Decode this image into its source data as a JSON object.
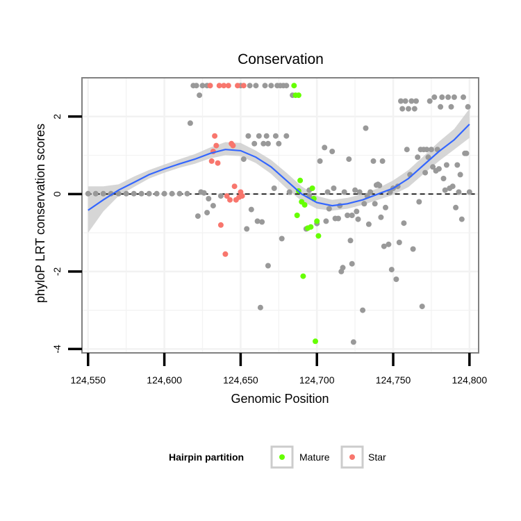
{
  "chart_data": {
    "type": "scatter",
    "title": "Conservation",
    "xlabel": "Genomic Position",
    "ylabel": "phyloP LRT conservation scores",
    "xlim": [
      124546,
      124806
    ],
    "ylim": [
      -4.1,
      3.0
    ],
    "x_ticks": [
      124550,
      124600,
      124650,
      124700,
      124750,
      124800
    ],
    "x_tick_labels": [
      "124,550",
      "124,600",
      "124,650",
      "124,700",
      "124,750",
      "124,800"
    ],
    "y_ticks": [
      -4,
      -2,
      0,
      2
    ],
    "y_tick_labels": [
      "-4",
      "-2",
      "0",
      "2"
    ],
    "reference_line_y": 0,
    "legend": {
      "title": "Hairpin partition",
      "position": "bottom",
      "entries": [
        {
          "label": "Mature",
          "color": "#66ff00"
        },
        {
          "label": "Star",
          "color": "#f8766d"
        }
      ]
    },
    "colors": {
      "other": "#999999",
      "mature": "#66ff00",
      "star": "#f8766d",
      "smooth": "#3366ff",
      "band": "#cccccc",
      "panel_bg": "#ffffff",
      "grid": "#f2f2f2"
    },
    "series": [
      {
        "name": "Other",
        "color": "#999999",
        "points": [
          [
            124550,
            0.01
          ],
          [
            124555,
            0.01
          ],
          [
            124560,
            0.01
          ],
          [
            124565,
            0.01
          ],
          [
            124570,
            0.01
          ],
          [
            124575,
            0.01
          ],
          [
            124580,
            0.01
          ],
          [
            124585,
            0.01
          ],
          [
            124590,
            0.01
          ],
          [
            124595,
            0.01
          ],
          [
            124600,
            0.01
          ],
          [
            124605,
            0.01
          ],
          [
            124610,
            0.01
          ],
          [
            124615,
            0.01
          ],
          [
            124617,
            1.83
          ],
          [
            124619,
            2.8
          ],
          [
            124621,
            2.8
          ],
          [
            124622,
            -0.57
          ],
          [
            124623,
            2.55
          ],
          [
            124624,
            0.05
          ],
          [
            124625,
            2.8
          ],
          [
            124626,
            0.03
          ],
          [
            124628,
            -0.48
          ],
          [
            124628,
            2.8
          ],
          [
            124629,
            -0.12
          ],
          [
            124630,
            2.8
          ],
          [
            124632,
            -0.3
          ],
          [
            124637,
            -0.05
          ],
          [
            124650,
            2.8
          ],
          [
            124652,
            0.9
          ],
          [
            124654,
            -0.9
          ],
          [
            124655,
            1.5
          ],
          [
            124656,
            2.8
          ],
          [
            124657,
            -0.4
          ],
          [
            124659,
            1.3
          ],
          [
            124660,
            2.8
          ],
          [
            124661,
            -0.7
          ],
          [
            124662,
            1.5
          ],
          [
            124663,
            -2.93
          ],
          [
            124664,
            -0.72
          ],
          [
            124665,
            1.3
          ],
          [
            124666,
            2.8
          ],
          [
            124667,
            1.5
          ],
          [
            124668,
            -1.85
          ],
          [
            124668,
            1.3
          ],
          [
            124670,
            2.8
          ],
          [
            124672,
            0.15
          ],
          [
            124673,
            1.5
          ],
          [
            124674,
            2.8
          ],
          [
            124675,
            1.3
          ],
          [
            124676,
            2.8
          ],
          [
            124677,
            -1.15
          ],
          [
            124678,
            2.8
          ],
          [
            124680,
            1.5
          ],
          [
            124680,
            2.8
          ],
          [
            124682,
            0.05
          ],
          [
            124684,
            2.55
          ],
          [
            124693,
            -0.9
          ],
          [
            124695,
            -0.05
          ],
          [
            124695,
            0.1
          ],
          [
            124700,
            -0.76
          ],
          [
            124702,
            0.85
          ],
          [
            124705,
            1.2
          ],
          [
            124706,
            -0.7
          ],
          [
            124707,
            0.05
          ],
          [
            124708,
            -0.38
          ],
          [
            124710,
            1.1
          ],
          [
            124711,
            0.15
          ],
          [
            124712,
            -0.63
          ],
          [
            124714,
            -0.63
          ],
          [
            124715,
            -0.3
          ],
          [
            124716,
            -2.0
          ],
          [
            124717,
            -1.9
          ],
          [
            124718,
            0.05
          ],
          [
            124720,
            -0.55
          ],
          [
            124721,
            0.9
          ],
          [
            124722,
            -1.2
          ],
          [
            124723,
            -1.8
          ],
          [
            124723,
            -0.55
          ],
          [
            124724,
            -3.82
          ],
          [
            124725,
            0.1
          ],
          [
            124726,
            -0.45
          ],
          [
            124727,
            -0.65
          ],
          [
            124728,
            0.05
          ],
          [
            124730,
            -3.0
          ],
          [
            124731,
            -0.25
          ],
          [
            124732,
            1.7
          ],
          [
            124733,
            -0.05
          ],
          [
            124734,
            -0.78
          ],
          [
            124735,
            0.05
          ],
          [
            124737,
            0.85
          ],
          [
            124738,
            -0.25
          ],
          [
            124739,
            0.23
          ],
          [
            124740,
            0.25
          ],
          [
            124741,
            0.22
          ],
          [
            124742,
            -0.6
          ],
          [
            124743,
            0.85
          ],
          [
            124744,
            -1.35
          ],
          [
            124745,
            -0.35
          ],
          [
            124747,
            -1.3
          ],
          [
            124748,
            0.05
          ],
          [
            124749,
            -1.95
          ],
          [
            124750,
            0.15
          ],
          [
            124752,
            -2.2
          ],
          [
            124753,
            0.2
          ],
          [
            124754,
            -1.25
          ],
          [
            124755,
            2.4
          ],
          [
            124756,
            2.2
          ],
          [
            124757,
            -0.75
          ],
          [
            124758,
            2.4
          ],
          [
            124759,
            1.15
          ],
          [
            124760,
            2.2
          ],
          [
            124761,
            0.5
          ],
          [
            124762,
            2.4
          ],
          [
            124763,
            -1.42
          ],
          [
            124764,
            2.2
          ],
          [
            124765,
            2.4
          ],
          [
            124766,
            0.95
          ],
          [
            124767,
            -0.2
          ],
          [
            124768,
            1.15
          ],
          [
            124769,
            -2.9
          ],
          [
            124770,
            1.15
          ],
          [
            124771,
            0.55
          ],
          [
            124772,
            1.15
          ],
          [
            124773,
            0.95
          ],
          [
            124774,
            2.4
          ],
          [
            124775,
            1.15
          ],
          [
            124776,
            0.7
          ],
          [
            124777,
            2.5
          ],
          [
            124778,
            0.6
          ],
          [
            124779,
            1.15
          ],
          [
            124780,
            0.65
          ],
          [
            124781,
            2.25
          ],
          [
            124782,
            2.5
          ],
          [
            124783,
            0.4
          ],
          [
            124784,
            0.1
          ],
          [
            124785,
            0.75
          ],
          [
            124786,
            2.5
          ],
          [
            124787,
            0.15
          ],
          [
            124788,
            2.25
          ],
          [
            124789,
            0.2
          ],
          [
            124790,
            2.5
          ],
          [
            124791,
            -0.35
          ],
          [
            124792,
            0.75
          ],
          [
            124793,
            0.05
          ],
          [
            124794,
            0.5
          ],
          [
            124795,
            -0.65
          ],
          [
            124796,
            2.5
          ],
          [
            124797,
            1.05
          ],
          [
            124798,
            1.05
          ],
          [
            124799,
            2.25
          ],
          [
            124800,
            0.05
          ]
        ]
      },
      {
        "name": "Mature",
        "color": "#66ff00",
        "points": [
          [
            124685,
            2.8
          ],
          [
            124686,
            2.55
          ],
          [
            124687,
            -0.55
          ],
          [
            124688,
            0.08
          ],
          [
            124688,
            2.55
          ],
          [
            124689,
            0.35
          ],
          [
            124690,
            -0.2
          ],
          [
            124691,
            -2.12
          ],
          [
            124692,
            -0.28
          ],
          [
            124694,
            -0.88
          ],
          [
            124696,
            -0.85
          ],
          [
            124697,
            0.15
          ],
          [
            124698,
            -0.12
          ],
          [
            124699,
            -3.8
          ],
          [
            124700,
            -0.7
          ],
          [
            124701,
            -1.08
          ]
        ]
      },
      {
        "name": "Star",
        "color": "#f8766d",
        "points": [
          [
            124630,
            2.8
          ],
          [
            124631,
            0.85
          ],
          [
            124632,
            1.1
          ],
          [
            124633,
            1.5
          ],
          [
            124634,
            1.25
          ],
          [
            124635,
            0.8
          ],
          [
            124636,
            2.8
          ],
          [
            124637,
            -0.8
          ],
          [
            124639,
            2.8
          ],
          [
            124640,
            -1.55
          ],
          [
            124641,
            -0.05
          ],
          [
            124642,
            2.8
          ],
          [
            124643,
            -0.15
          ],
          [
            124644,
            1.3
          ],
          [
            124645,
            1.25
          ],
          [
            124646,
            0.2
          ],
          [
            124647,
            -0.15
          ],
          [
            124648,
            2.8
          ],
          [
            124649,
            -0.08
          ],
          [
            124650,
            0.05
          ],
          [
            124651,
            -0.05
          ],
          [
            124652,
            2.8
          ]
        ]
      }
    ],
    "smooth": {
      "x": [
        124550,
        124560,
        124570,
        124580,
        124590,
        124600,
        124610,
        124620,
        124630,
        124640,
        124650,
        124660,
        124670,
        124680,
        124690,
        124700,
        124710,
        124720,
        124730,
        124740,
        124750,
        124760,
        124770,
        124780,
        124790,
        124800
      ],
      "y": [
        -0.42,
        -0.15,
        0.1,
        0.3,
        0.5,
        0.65,
        0.78,
        0.9,
        1.05,
        1.15,
        1.12,
        0.95,
        0.7,
        0.35,
        0.0,
        -0.22,
        -0.3,
        -0.25,
        -0.15,
        0.0,
        0.15,
        0.4,
        0.75,
        1.1,
        1.4,
        1.8
      ],
      "lower": [
        -1.0,
        -0.45,
        -0.05,
        0.18,
        0.4,
        0.55,
        0.68,
        0.78,
        0.92,
        1.0,
        0.98,
        0.8,
        0.52,
        0.15,
        -0.18,
        -0.38,
        -0.43,
        -0.38,
        -0.28,
        -0.15,
        -0.02,
        0.18,
        0.52,
        0.85,
        1.15,
        1.45
      ],
      "upper": [
        0.2,
        0.2,
        0.25,
        0.45,
        0.62,
        0.76,
        0.9,
        1.03,
        1.2,
        1.34,
        1.32,
        1.12,
        0.88,
        0.55,
        0.2,
        -0.05,
        -0.15,
        -0.1,
        0.0,
        0.15,
        0.35,
        0.62,
        0.98,
        1.35,
        1.68,
        2.2
      ]
    }
  }
}
